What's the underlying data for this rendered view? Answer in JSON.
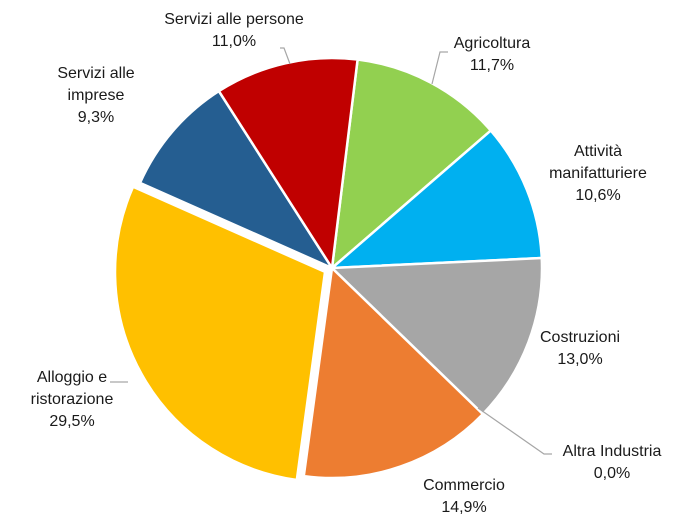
{
  "chart_data": {
    "type": "pie",
    "title": "",
    "slices": [
      {
        "label_lines": [
          "Agricoltura"
        ],
        "value_label": "11,7%",
        "value": 11.7,
        "color": "#92d050"
      },
      {
        "label_lines": [
          "Attività",
          "manifatturiere"
        ],
        "value_label": "10,6%",
        "value": 10.6,
        "color": "#00b0f0"
      },
      {
        "label_lines": [
          "Costruzioni"
        ],
        "value_label": "13,0%",
        "value": 13.0,
        "color": "#a6a6a6"
      },
      {
        "label_lines": [
          "Altra Industria"
        ],
        "value_label": "0,0%",
        "value": 0.0,
        "color": "#d9d9d9"
      },
      {
        "label_lines": [
          "Commercio"
        ],
        "value_label": "14,9%",
        "value": 14.9,
        "color": "#ed7d31"
      },
      {
        "label_lines": [
          "Alloggio e",
          "ristorazione"
        ],
        "value_label": "29,5%",
        "value": 29.5,
        "color": "#ffc000"
      },
      {
        "label_lines": [
          "Servizi alle",
          "imprese"
        ],
        "value_label": "9,3%",
        "value": 9.3,
        "color": "#255e91"
      },
      {
        "label_lines": [
          "Servizi alle persone"
        ],
        "value_label": "11,0%",
        "value": 11.0,
        "color": "#c00000"
      }
    ],
    "legend": "none"
  }
}
